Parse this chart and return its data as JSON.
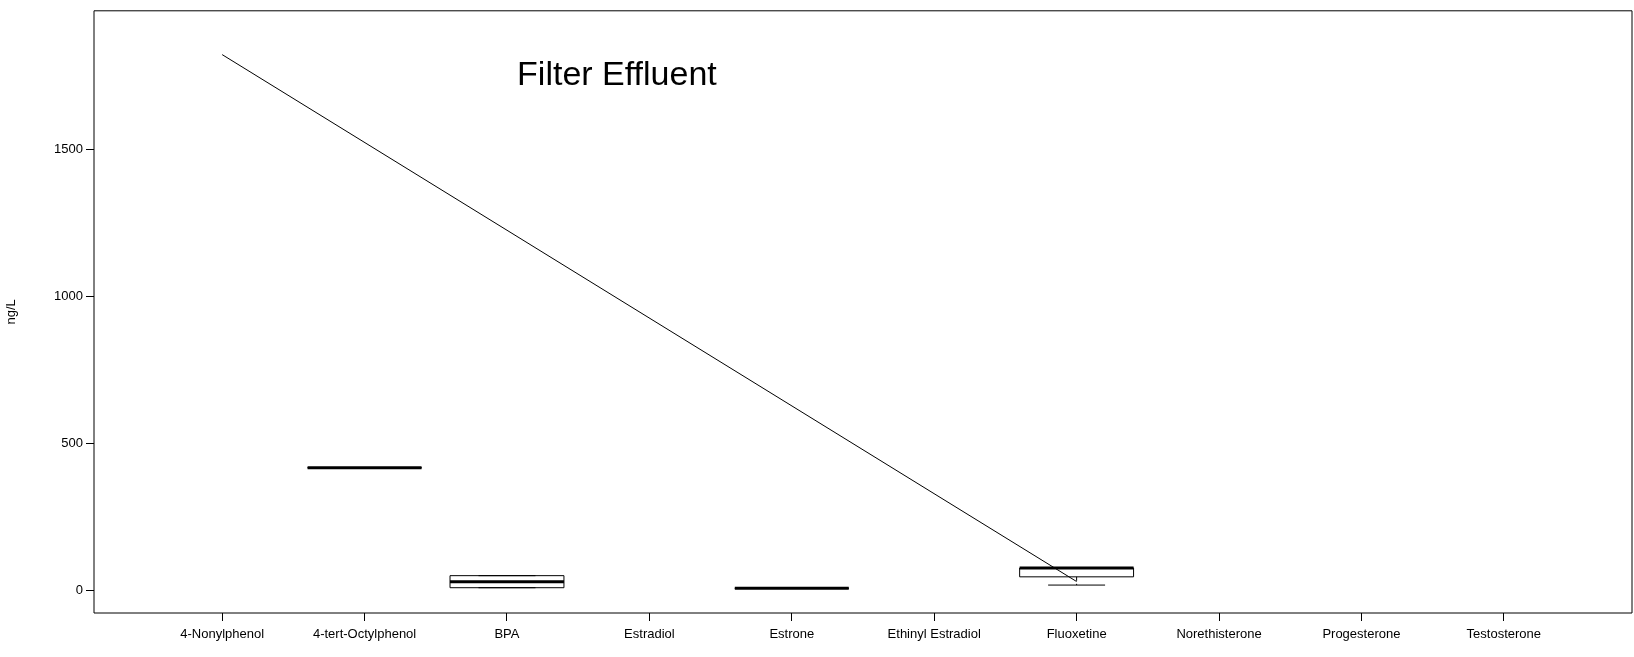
{
  "chart_data": {
    "type": "box",
    "color": "#000000",
    "title": "Filter Effluent",
    "ylabel": "ng/L",
    "categories": [
      "4-Nonylphenol",
      "4-tert-Octylphenol",
      "BPA",
      "Estradiol",
      "Estrone",
      "Ethinyl Estradiol",
      "Fluoxetine",
      "Norethisterone",
      "Progesterone",
      "Testosterone"
    ],
    "boxes": [
      null,
      {
        "low": 418,
        "q1": 418,
        "median": 418,
        "q3": 418,
        "high": 418
      },
      {
        "low": 10,
        "q1": 10,
        "median": 30,
        "q3": 51,
        "high": 51
      },
      null,
      {
        "low": 8,
        "q1": 8,
        "median": 8,
        "q3": 8,
        "high": 8
      },
      null,
      {
        "low": 19,
        "q1": 47,
        "median": 77,
        "q3": 77,
        "high": 77
      },
      null,
      null,
      null
    ],
    "series": [
      {
        "type": "line",
        "x": [
          "4-Nonylphenol",
          "Fluoxetine"
        ],
        "values": [
          1823,
          31
        ],
        "color": "#000000"
      }
    ],
    "ylim": [
      -76,
      1972
    ],
    "yticks": [
      0,
      500,
      1000,
      1500
    ]
  }
}
